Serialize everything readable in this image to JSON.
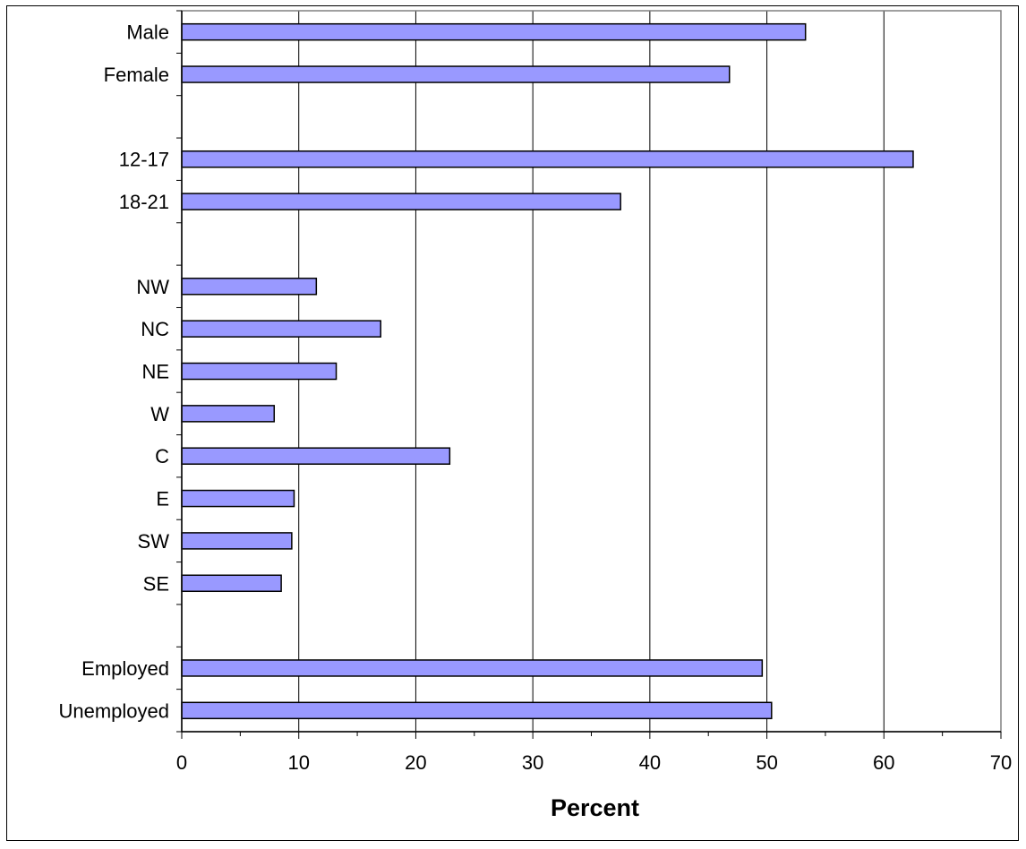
{
  "chart_data": {
    "type": "bar",
    "orientation": "horizontal",
    "title": "",
    "xlabel": "Percent",
    "ylabel": "",
    "xlim": [
      0,
      70
    ],
    "xticks": [
      0,
      10,
      20,
      30,
      40,
      50,
      60,
      70
    ],
    "grid": "vertical",
    "bar_color": "#9999ff",
    "categories": [
      "Male",
      "Female",
      "",
      "12-17",
      "18-21",
      "",
      "NW",
      "NC",
      "NE",
      "W",
      "C",
      "E",
      "SW",
      "SE",
      "",
      "Employed",
      "Unemployed"
    ],
    "values": [
      53.3,
      46.8,
      null,
      62.5,
      37.5,
      null,
      11.5,
      17.0,
      13.2,
      7.9,
      22.9,
      9.6,
      9.4,
      8.5,
      null,
      49.6,
      50.4
    ]
  }
}
